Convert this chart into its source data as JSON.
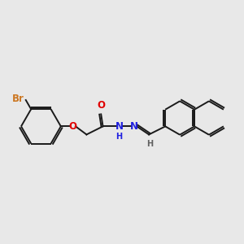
{
  "background_color": "#e8e8e8",
  "bond_color": "#1a1a1a",
  "atom_colors": {
    "Br": "#cc7722",
    "O": "#e00000",
    "N": "#2020e0",
    "H": "#606060",
    "C": "#1a1a1a"
  },
  "figsize": [
    3.0,
    3.0
  ],
  "dpi": 100,
  "line_width": 1.4,
  "font_size_atom": 8.5,
  "font_size_h": 7.0
}
